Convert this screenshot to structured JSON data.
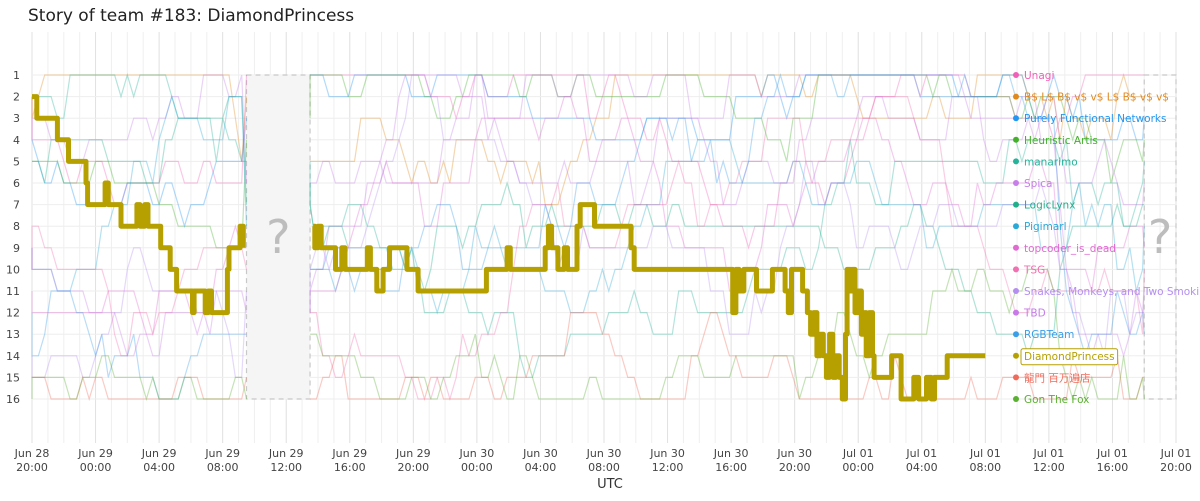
{
  "chart_data": {
    "type": "line",
    "title": "Story of team #183: DiamondPrincess",
    "xlabel": "UTC",
    "ylabel": "",
    "x_ticks": [
      [
        "Jun 28",
        "20:00"
      ],
      [
        "Jun 29",
        "00:00"
      ],
      [
        "Jun 29",
        "04:00"
      ],
      [
        "Jun 29",
        "08:00"
      ],
      [
        "Jun 29",
        "12:00"
      ],
      [
        "Jun 29",
        "16:00"
      ],
      [
        "Jun 29",
        "20:00"
      ],
      [
        "Jun 30",
        "00:00"
      ],
      [
        "Jun 30",
        "04:00"
      ],
      [
        "Jun 30",
        "08:00"
      ],
      [
        "Jun 30",
        "12:00"
      ],
      [
        "Jun 30",
        "16:00"
      ],
      [
        "Jun 30",
        "20:00"
      ],
      [
        "Jul 01",
        "00:00"
      ],
      [
        "Jul 01",
        "04:00"
      ],
      [
        "Jul 01",
        "08:00"
      ],
      [
        "Jul 01",
        "12:00"
      ],
      [
        "Jul 01",
        "16:00"
      ],
      [
        "Jul 01",
        "20:00"
      ]
    ],
    "x_range_hours": [
      0,
      72
    ],
    "y_ticks": [
      1,
      2,
      3,
      4,
      5,
      6,
      7,
      8,
      9,
      10,
      11,
      12,
      13,
      14,
      15,
      16
    ],
    "ylim": [
      16,
      1
    ],
    "grid": true,
    "gaps": [
      {
        "start_hour": 13.5,
        "end_hour": 17.5,
        "label": "?"
      },
      {
        "start_hour": 70.0,
        "end_hour": 72.0,
        "label": "?"
      }
    ],
    "final_ranking": [
      {
        "rank": 1,
        "name": "Unagi",
        "color": "#f060b8"
      },
      {
        "rank": 2,
        "name": "B$ L$ B$ v$ v$ L$ B$ v$ v$",
        "color": "#e08a1e"
      },
      {
        "rank": 3,
        "name": "Purely Functional Networks",
        "color": "#2196f3"
      },
      {
        "rank": 4,
        "name": "Heuristic Artis",
        "color": "#43b02a"
      },
      {
        "rank": 5,
        "name": "manarimo",
        "color": "#26b39a"
      },
      {
        "rank": 6,
        "name": "Spica",
        "color": "#c77ee8"
      },
      {
        "rank": 7,
        "name": "LogicLynx",
        "color": "#1fb08a"
      },
      {
        "rank": 8,
        "name": "Pigimarl",
        "color": "#2aa8d8"
      },
      {
        "rank": 9,
        "name": "topcoder_is_dead",
        "color": "#e06ad0"
      },
      {
        "rank": 10,
        "name": "TSG",
        "color": "#f070b0"
      },
      {
        "rank": 11,
        "name": "Snakes, Monkeys, and Two Smoking Lambdas",
        "color": "#b48ef0"
      },
      {
        "rank": 12,
        "name": "TBD",
        "color": "#c87ae8"
      },
      {
        "rank": 13,
        "name": "RGBTeam",
        "color": "#3a9ee8"
      },
      {
        "rank": 14,
        "name": "DiamondPrincess",
        "color": "#b5a000"
      },
      {
        "rank": 15,
        "name": "龍門 百万遍店",
        "color": "#f06a5a"
      },
      {
        "rank": 16,
        "name": "Gon The Fox",
        "color": "#5ab030"
      }
    ],
    "highlight_team": "DiamondPrincess",
    "highlight_series": {
      "name": "DiamondPrincess",
      "color": "#b5a000",
      "points": [
        [
          0.0,
          2
        ],
        [
          0.3,
          3
        ],
        [
          1.5,
          3
        ],
        [
          1.6,
          4
        ],
        [
          2.2,
          4
        ],
        [
          2.3,
          5
        ],
        [
          3.3,
          5
        ],
        [
          3.4,
          6
        ],
        [
          3.5,
          7
        ],
        [
          4.5,
          7
        ],
        [
          4.6,
          6
        ],
        [
          4.8,
          7
        ],
        [
          5.5,
          7
        ],
        [
          5.6,
          8
        ],
        [
          6.5,
          8
        ],
        [
          6.6,
          7
        ],
        [
          6.8,
          8
        ],
        [
          7.0,
          8
        ],
        [
          7.1,
          7
        ],
        [
          7.3,
          8
        ],
        [
          8.0,
          8
        ],
        [
          8.1,
          9
        ],
        [
          8.6,
          9
        ],
        [
          8.7,
          10
        ],
        [
          9.0,
          10
        ],
        [
          9.1,
          11
        ],
        [
          10.0,
          11
        ],
        [
          10.1,
          12
        ],
        [
          10.2,
          11
        ],
        [
          10.8,
          11
        ],
        [
          10.9,
          12
        ],
        [
          11.1,
          11
        ],
        [
          11.3,
          12
        ],
        [
          12.2,
          12
        ],
        [
          12.3,
          10
        ],
        [
          12.4,
          9
        ],
        [
          13.0,
          9
        ],
        [
          13.1,
          8
        ],
        [
          13.3,
          9
        ],
        [
          17.7,
          8
        ],
        [
          17.8,
          9
        ],
        [
          18.0,
          8
        ],
        [
          18.2,
          9
        ],
        [
          19.0,
          9
        ],
        [
          19.1,
          10
        ],
        [
          19.4,
          10
        ],
        [
          19.5,
          9
        ],
        [
          19.7,
          10
        ],
        [
          21.0,
          10
        ],
        [
          21.1,
          9
        ],
        [
          21.3,
          10
        ],
        [
          21.6,
          10
        ],
        [
          21.7,
          11
        ],
        [
          22.0,
          11
        ],
        [
          22.1,
          10
        ],
        [
          22.5,
          9
        ],
        [
          23.5,
          9
        ],
        [
          23.6,
          10
        ],
        [
          24.2,
          10
        ],
        [
          24.3,
          11
        ],
        [
          28.5,
          11
        ],
        [
          28.6,
          10
        ],
        [
          29.8,
          10
        ],
        [
          29.9,
          9
        ],
        [
          30.1,
          10
        ],
        [
          32.2,
          10
        ],
        [
          32.3,
          9
        ],
        [
          32.5,
          8
        ],
        [
          32.7,
          9
        ],
        [
          33.0,
          9
        ],
        [
          33.1,
          10
        ],
        [
          33.4,
          10
        ],
        [
          33.5,
          9
        ],
        [
          33.7,
          10
        ],
        [
          34.2,
          10
        ],
        [
          34.3,
          8
        ],
        [
          34.5,
          7
        ],
        [
          35.3,
          7
        ],
        [
          35.4,
          8
        ],
        [
          37.6,
          8
        ],
        [
          37.7,
          9
        ],
        [
          37.9,
          10
        ],
        [
          44.0,
          10
        ],
        [
          44.1,
          12
        ],
        [
          44.3,
          10
        ],
        [
          44.5,
          11
        ],
        [
          44.8,
          10
        ],
        [
          45.5,
          10
        ],
        [
          45.6,
          11
        ],
        [
          46.5,
          11
        ],
        [
          46.6,
          10
        ],
        [
          47.3,
          10
        ],
        [
          47.4,
          11
        ],
        [
          47.6,
          12
        ],
        [
          47.8,
          10
        ],
        [
          48.4,
          10
        ],
        [
          48.5,
          11
        ],
        [
          48.8,
          12
        ],
        [
          49.0,
          13
        ],
        [
          49.2,
          12
        ],
        [
          49.4,
          14
        ],
        [
          49.6,
          13
        ],
        [
          49.8,
          14
        ],
        [
          50.0,
          15
        ],
        [
          50.2,
          13
        ],
        [
          50.4,
          15
        ],
        [
          50.6,
          14
        ],
        [
          50.8,
          15
        ],
        [
          51.0,
          16
        ],
        [
          51.2,
          13
        ],
        [
          51.3,
          10
        ],
        [
          51.5,
          11
        ],
        [
          51.6,
          10
        ],
        [
          51.8,
          12
        ],
        [
          52.0,
          11
        ],
        [
          52.2,
          13
        ],
        [
          52.4,
          12
        ],
        [
          52.5,
          14
        ],
        [
          52.7,
          12
        ],
        [
          52.9,
          14
        ],
        [
          53.0,
          15
        ],
        [
          54.0,
          15
        ],
        [
          54.1,
          14
        ],
        [
          54.6,
          14
        ],
        [
          54.7,
          16
        ],
        [
          55.4,
          16
        ],
        [
          55.5,
          15
        ],
        [
          55.7,
          15
        ],
        [
          55.8,
          16
        ],
        [
          56.2,
          16
        ],
        [
          56.3,
          15
        ],
        [
          56.6,
          16
        ],
        [
          56.8,
          15
        ],
        [
          57.5,
          15
        ],
        [
          57.6,
          14
        ],
        [
          60.0,
          14
        ]
      ]
    }
  }
}
